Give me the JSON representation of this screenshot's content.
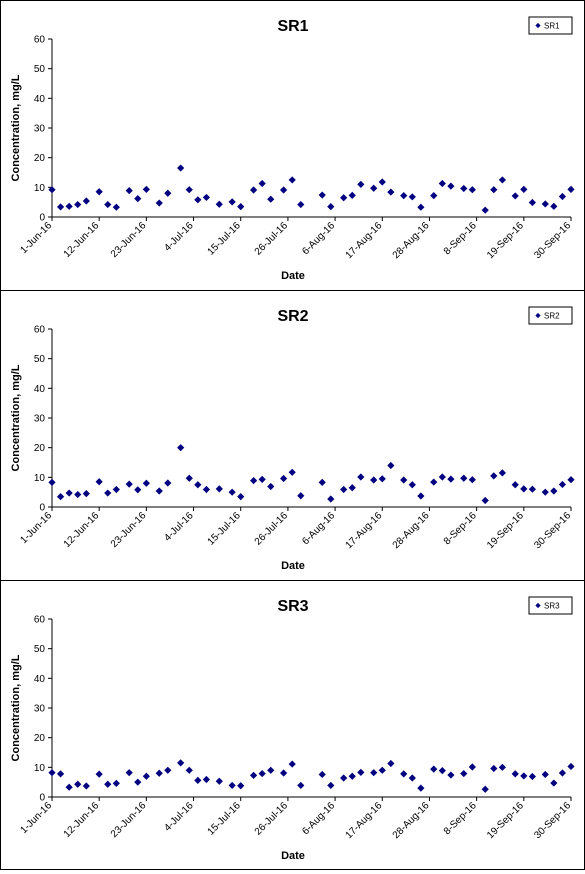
{
  "chart_data": [
    {
      "type": "scatter",
      "title": "SR1",
      "xlabel": "Date",
      "ylabel": "Concentration, mg/L",
      "ylim": [
        0,
        60
      ],
      "yticks": [
        "0",
        "10",
        "20",
        "30",
        "40",
        "50",
        "60"
      ],
      "xlim": [
        "2016-06-01",
        "2016-09-30"
      ],
      "xticks": [
        "1-Jun-16",
        "12-Jun-16",
        "23-Jun-16",
        "4-Jul-16",
        "15-Jul-16",
        "26-Jul-16",
        "6-Aug-16",
        "17-Aug-16",
        "28-Aug-16",
        "8-Sep-16",
        "19-Sep-16",
        "30-Sep-16"
      ],
      "grid": false,
      "legend": "top-right",
      "marker_color": "#000080",
      "series": [
        {
          "name": "SR1",
          "x": [
            "2016-06-01",
            "2016-06-03",
            "2016-06-05",
            "2016-06-07",
            "2016-06-09",
            "2016-06-12",
            "2016-06-14",
            "2016-06-16",
            "2016-06-19",
            "2016-06-21",
            "2016-06-23",
            "2016-06-26",
            "2016-06-28",
            "2016-07-01",
            "2016-07-03",
            "2016-07-05",
            "2016-07-07",
            "2016-07-10",
            "2016-07-13",
            "2016-07-15",
            "2016-07-18",
            "2016-07-20",
            "2016-07-22",
            "2016-07-25",
            "2016-07-27",
            "2016-07-29",
            "2016-08-03",
            "2016-08-05",
            "2016-08-08",
            "2016-08-10",
            "2016-08-12",
            "2016-08-15",
            "2016-08-17",
            "2016-08-19",
            "2016-08-22",
            "2016-08-24",
            "2016-08-26",
            "2016-08-29",
            "2016-08-31",
            "2016-09-02",
            "2016-09-05",
            "2016-09-07",
            "2016-09-10",
            "2016-09-12",
            "2016-09-14",
            "2016-09-17",
            "2016-09-19",
            "2016-09-21",
            "2016-09-24",
            "2016-09-26",
            "2016-09-28",
            "2016-09-30"
          ],
          "y": [
            9.2,
            3.4,
            3.6,
            4.2,
            5.4,
            8.5,
            4.2,
            3.3,
            8.9,
            6.2,
            9.3,
            4.7,
            8,
            16.5,
            9.2,
            5.8,
            6.6,
            4.3,
            5.1,
            3.5,
            9.1,
            11.3,
            6,
            9.1,
            12.5,
            4.2,
            7.4,
            3.5,
            6.5,
            7.3,
            11,
            9.7,
            11.8,
            8.4,
            7.2,
            6.8,
            3.3,
            7.2,
            11.3,
            10.4,
            9.6,
            9.2,
            2.3,
            9.2,
            12.5,
            7.1,
            9.3,
            4.9,
            4.4,
            3.6,
            6.9,
            9.3
          ]
        }
      ]
    },
    {
      "type": "scatter",
      "title": "SR2",
      "xlabel": "Date",
      "ylabel": "Concentration, mg/L",
      "ylim": [
        0,
        60
      ],
      "yticks": [
        "0",
        "10",
        "20",
        "30",
        "40",
        "50",
        "60"
      ],
      "xlim": [
        "2016-06-01",
        "2016-09-30"
      ],
      "xticks": [
        "1-Jun-16",
        "12-Jun-16",
        "23-Jun-16",
        "4-Jul-16",
        "15-Jul-16",
        "26-Jul-16",
        "6-Aug-16",
        "17-Aug-16",
        "28-Aug-16",
        "8-Sep-16",
        "19-Sep-16",
        "30-Sep-16"
      ],
      "grid": false,
      "legend": "top-right",
      "marker_color": "#000080",
      "series": [
        {
          "name": "SR2",
          "x": [
            "2016-06-01",
            "2016-06-03",
            "2016-06-05",
            "2016-06-07",
            "2016-06-09",
            "2016-06-12",
            "2016-06-14",
            "2016-06-16",
            "2016-06-19",
            "2016-06-21",
            "2016-06-23",
            "2016-06-26",
            "2016-06-28",
            "2016-07-01",
            "2016-07-03",
            "2016-07-05",
            "2016-07-07",
            "2016-07-10",
            "2016-07-13",
            "2016-07-15",
            "2016-07-18",
            "2016-07-20",
            "2016-07-22",
            "2016-07-25",
            "2016-07-27",
            "2016-07-29",
            "2016-08-03",
            "2016-08-05",
            "2016-08-08",
            "2016-08-10",
            "2016-08-12",
            "2016-08-15",
            "2016-08-17",
            "2016-08-19",
            "2016-08-22",
            "2016-08-24",
            "2016-08-26",
            "2016-08-29",
            "2016-08-31",
            "2016-09-02",
            "2016-09-05",
            "2016-09-07",
            "2016-09-10",
            "2016-09-12",
            "2016-09-14",
            "2016-09-17",
            "2016-09-19",
            "2016-09-21",
            "2016-09-24",
            "2016-09-26",
            "2016-09-28",
            "2016-09-30"
          ],
          "y": [
            8.3,
            3.5,
            4.7,
            4.2,
            4.5,
            8.5,
            4.7,
            5.9,
            7.7,
            5.8,
            8,
            5.4,
            8.1,
            20,
            9.7,
            7.5,
            5.9,
            6.1,
            5,
            3.5,
            8.9,
            9.3,
            6.9,
            9.6,
            11.7,
            3.8,
            8.3,
            2.7,
            5.9,
            6.5,
            10.1,
            9.1,
            9.5,
            14,
            9.1,
            7.5,
            3.7,
            8.4,
            10.1,
            9.4,
            9.7,
            9.2,
            2.2,
            10.5,
            11.5,
            7.5,
            6.1,
            6,
            5,
            5.4,
            7.6,
            9.2
          ]
        }
      ]
    },
    {
      "type": "scatter",
      "title": "SR3",
      "xlabel": "Date",
      "ylabel": "Concentration, mg/L",
      "ylim": [
        0,
        60
      ],
      "yticks": [
        "0",
        "10",
        "20",
        "30",
        "40",
        "50",
        "60"
      ],
      "xlim": [
        "2016-06-01",
        "2016-09-30"
      ],
      "xticks": [
        "1-Jun-16",
        "12-Jun-16",
        "23-Jun-16",
        "4-Jul-16",
        "15-Jul-16",
        "26-Jul-16",
        "6-Aug-16",
        "17-Aug-16",
        "28-Aug-16",
        "8-Sep-16",
        "19-Sep-16",
        "30-Sep-16"
      ],
      "grid": false,
      "legend": "top-right",
      "marker_color": "#000080",
      "series": [
        {
          "name": "SR3",
          "x": [
            "2016-06-01",
            "2016-06-03",
            "2016-06-05",
            "2016-06-07",
            "2016-06-09",
            "2016-06-12",
            "2016-06-14",
            "2016-06-16",
            "2016-06-19",
            "2016-06-21",
            "2016-06-23",
            "2016-06-26",
            "2016-06-28",
            "2016-07-01",
            "2016-07-03",
            "2016-07-05",
            "2016-07-07",
            "2016-07-10",
            "2016-07-13",
            "2016-07-15",
            "2016-07-18",
            "2016-07-20",
            "2016-07-22",
            "2016-07-25",
            "2016-07-27",
            "2016-07-29",
            "2016-08-03",
            "2016-08-05",
            "2016-08-08",
            "2016-08-10",
            "2016-08-12",
            "2016-08-15",
            "2016-08-17",
            "2016-08-19",
            "2016-08-22",
            "2016-08-24",
            "2016-08-26",
            "2016-08-29",
            "2016-08-31",
            "2016-09-02",
            "2016-09-05",
            "2016-09-07",
            "2016-09-10",
            "2016-09-12",
            "2016-09-14",
            "2016-09-17",
            "2016-09-19",
            "2016-09-21",
            "2016-09-24",
            "2016-09-26",
            "2016-09-28",
            "2016-09-30"
          ],
          "y": [
            8.2,
            7.8,
            3.3,
            4.3,
            3.7,
            7.7,
            4.3,
            4.6,
            8.2,
            5,
            7,
            8,
            9,
            11.5,
            9,
            5.6,
            5.9,
            5.3,
            3.9,
            3.8,
            7.3,
            7.9,
            9,
            8.1,
            11.1,
            3.9,
            7.6,
            3.9,
            6.4,
            7,
            8.3,
            8.2,
            9,
            11.3,
            7.8,
            6.4,
            3,
            9.4,
            8.9,
            7.4,
            7.9,
            10.1,
            2.6,
            9.6,
            10,
            7.8,
            7.1,
            6.9,
            7.6,
            4.7,
            8.1,
            10.3
          ]
        }
      ]
    }
  ]
}
